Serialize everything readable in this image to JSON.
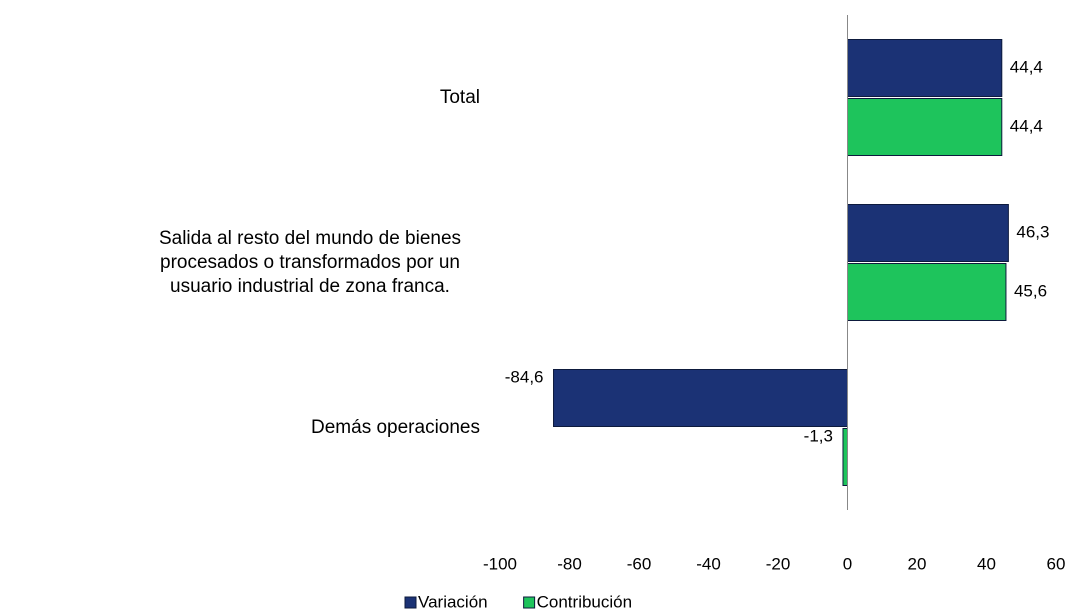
{
  "chart_data": {
    "type": "bar",
    "orientation": "horizontal",
    "categories": [
      "Total",
      "Salida al resto del mundo de bienes procesados o transformados por un usuario industrial de zona franca.",
      "Demás operaciones"
    ],
    "series": [
      {
        "name": "Variación",
        "color": "#1b3275",
        "values": [
          44.4,
          46.3,
          -84.6
        ],
        "value_labels": [
          "44,4",
          "46,3",
          "-84,6"
        ]
      },
      {
        "name": "Contribución",
        "color": "#1ec45c",
        "values": [
          44.4,
          45.6,
          -1.3
        ],
        "value_labels": [
          "44,4",
          "45,6",
          "-1,3"
        ]
      }
    ],
    "xlim": [
      -100,
      60
    ],
    "xticks": [
      -100,
      -80,
      -60,
      -40,
      -20,
      0,
      20,
      40,
      60
    ],
    "legend": "bottom"
  }
}
